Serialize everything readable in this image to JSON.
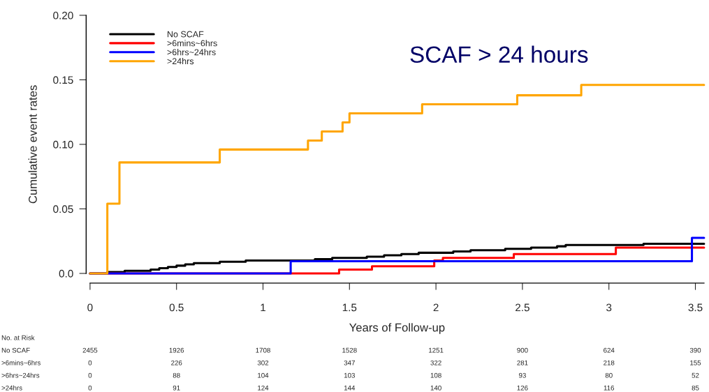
{
  "chart_data": {
    "type": "step",
    "title": "SCAF > 24 hours",
    "xlabel": "Years of Follow-up",
    "ylabel": "Cumulative event rates",
    "series": [
      {
        "name": "No SCAF",
        "color": "#000000",
        "x": [
          0,
          0.1,
          0.2,
          0.35,
          0.4,
          0.45,
          0.5,
          0.55,
          0.6,
          0.75,
          0.9,
          1.3,
          1.4,
          1.6,
          1.7,
          1.8,
          1.9,
          2.1,
          2.2,
          2.4,
          2.55,
          2.7,
          2.75,
          3.2,
          3.55
        ],
        "values": [
          0,
          0.001,
          0.002,
          0.003,
          0.004,
          0.005,
          0.006,
          0.007,
          0.008,
          0.009,
          0.01,
          0.011,
          0.012,
          0.013,
          0.014,
          0.015,
          0.016,
          0.017,
          0.018,
          0.019,
          0.02,
          0.021,
          0.022,
          0.023,
          0.023
        ]
      },
      {
        "name": ">6mins~6hrs",
        "color": "#ff0000",
        "x": [
          0,
          1.44,
          1.63,
          1.99,
          2.04,
          2.45,
          3.04,
          3.55
        ],
        "values": [
          0,
          0.003,
          0.0055,
          0.01,
          0.012,
          0.015,
          0.02,
          0.02
        ]
      },
      {
        "name": ">6hrs~24hrs",
        "color": "#0000ff",
        "x": [
          0,
          1.16,
          3.48,
          3.55
        ],
        "values": [
          0,
          0.0095,
          0.0276,
          0.0276
        ]
      },
      {
        "name": ">24hrs",
        "color": "#ffa500",
        "x": [
          0,
          0.1,
          0.17,
          0.75,
          1.26,
          1.34,
          1.46,
          1.5,
          1.92,
          2.47,
          2.84,
          3.55
        ],
        "values": [
          0,
          0.054,
          0.086,
          0.096,
          0.103,
          0.11,
          0.117,
          0.124,
          0.131,
          0.138,
          0.146,
          0.146
        ]
      }
    ],
    "xlim": [
      0,
      3.55
    ],
    "ylim": [
      0,
      0.2
    ],
    "xticks": [
      0,
      0.5,
      1,
      1.5,
      2,
      2.5,
      3,
      3.5
    ],
    "yticks": [
      {
        "value": 0,
        "label": "0.0"
      },
      {
        "value": 0.05,
        "label": "0.05"
      },
      {
        "value": 0.1,
        "label": "0.10"
      },
      {
        "value": 0.15,
        "label": "0.15"
      },
      {
        "value": 0.2,
        "label": "0.20"
      }
    ],
    "legend": "top left",
    "grid": false,
    "annotations": [
      "No. at Risk",
      "No SCAF",
      "2455",
      "1926",
      "1708",
      "1528",
      "1251",
      "900",
      "624",
      "390",
      ">6mins~6hrs",
      "0",
      "226",
      "302",
      "347",
      "322",
      "281",
      "218",
      "155",
      ">6hrs~24hrs",
      "0",
      "88",
      "104",
      "103",
      "108",
      "93",
      "80",
      "52",
      ">24hrs",
      "0",
      "91",
      "124",
      "144",
      "140",
      "126",
      "116",
      "85"
    ]
  }
}
